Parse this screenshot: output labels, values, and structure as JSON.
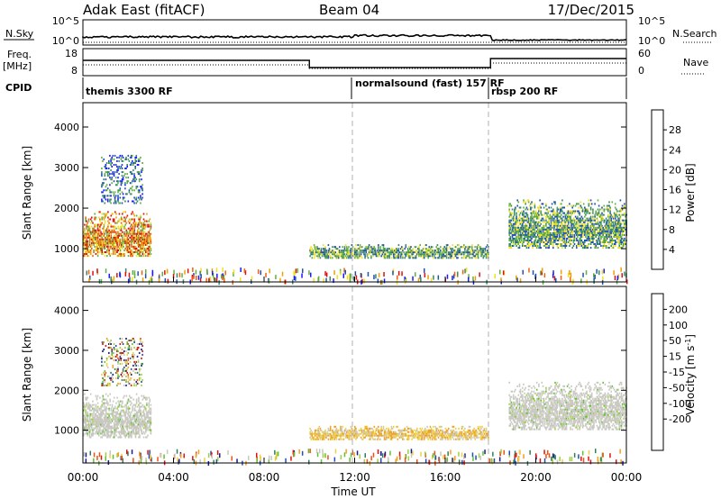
{
  "header": {
    "title": "Adak East (fitACF)",
    "beam": "Beam 04",
    "date": "17/Dec/2015"
  },
  "top_panel": {
    "left_label": "N.Sky",
    "right_label": "N.Search",
    "left_ticks": [
      "10^5",
      "10^0"
    ],
    "right_ticks": [
      "10^5",
      "10^0"
    ]
  },
  "freq_panel": {
    "left_label_line1": "Freq.",
    "left_label_line2": "[MHz]",
    "right_label": "Nave",
    "left_ticks": [
      "18",
      "8"
    ],
    "right_ticks": [
      "60",
      "0"
    ]
  },
  "cpid": {
    "label": "CPID",
    "segments": [
      "themis 3300 RF",
      "normalsound (fast) 157 RF",
      "rbsp 200 RF"
    ]
  },
  "xaxis": {
    "label": "Time UT",
    "ticks": [
      "00:00",
      "04:00",
      "08:00",
      "12:00",
      "16:00",
      "20:00",
      "00:00"
    ]
  },
  "colors": {
    "power": [
      "#1a1aff",
      "#2050b0",
      "#3a8a6a",
      "#60b040",
      "#f0e020",
      "#f0a000",
      "#f06010",
      "#e01010"
    ],
    "velocity": [
      "#e01010",
      "#f05010",
      "#f0a020",
      "#f0d040",
      "#c8c8c0",
      "#a0d040",
      "#60c030",
      "#308060",
      "#2050b0",
      "#1a1a90"
    ],
    "line": "#000000",
    "dashed": "#b0b0b0"
  },
  "chart_data": [
    {
      "type": "heatmap",
      "title": "Power",
      "xlabel": "",
      "ylabel": "Slant Range [km]",
      "y_ticks": [
        "1000",
        "2000",
        "3000",
        "4000"
      ],
      "ylim": [
        180,
        4600
      ],
      "xlim": [
        0,
        24
      ],
      "colorbar_label": "Power [dB]",
      "colorbar_ticks": [
        "4",
        "8",
        "12",
        "16",
        "20",
        "24",
        "28"
      ],
      "colorbar_range": [
        0,
        32
      ],
      "echo_regions": [
        {
          "t0": 0.0,
          "t1": 3.0,
          "r0": 800,
          "r1": 1900,
          "level": "high"
        },
        {
          "t0": 0.8,
          "t1": 2.6,
          "r0": 2100,
          "r1": 3300,
          "level": "low"
        },
        {
          "t0": 10.0,
          "t1": 17.9,
          "r0": 750,
          "r1": 1100,
          "level": "mid"
        },
        {
          "t0": 18.8,
          "t1": 24.0,
          "r0": 1000,
          "r1": 2200,
          "level": "mid"
        }
      ]
    },
    {
      "type": "heatmap",
      "title": "Velocity",
      "xlabel": "Time UT",
      "ylabel": "Slant Range [km]",
      "y_ticks": [
        "1000",
        "2000",
        "3000",
        "4000"
      ],
      "ylim": [
        180,
        4600
      ],
      "xlim": [
        0,
        24
      ],
      "colorbar_label": "Velocity [m s^-1]",
      "colorbar_ticks": [
        "200",
        "100",
        "50",
        "15",
        "-15",
        "-50",
        "-100",
        "-200"
      ],
      "colorbar_range": [
        -250,
        250
      ],
      "echo_regions": [
        {
          "t0": 0.0,
          "t1": 3.0,
          "r0": 800,
          "r1": 1900,
          "level": "ground"
        },
        {
          "t0": 0.8,
          "t1": 2.6,
          "r0": 2100,
          "r1": 3300,
          "level": "mixed"
        },
        {
          "t0": 10.0,
          "t1": 17.9,
          "r0": 750,
          "r1": 1100,
          "level": "neg"
        },
        {
          "t0": 18.8,
          "t1": 24.0,
          "r0": 1000,
          "r1": 2200,
          "level": "ground"
        }
      ]
    }
  ]
}
